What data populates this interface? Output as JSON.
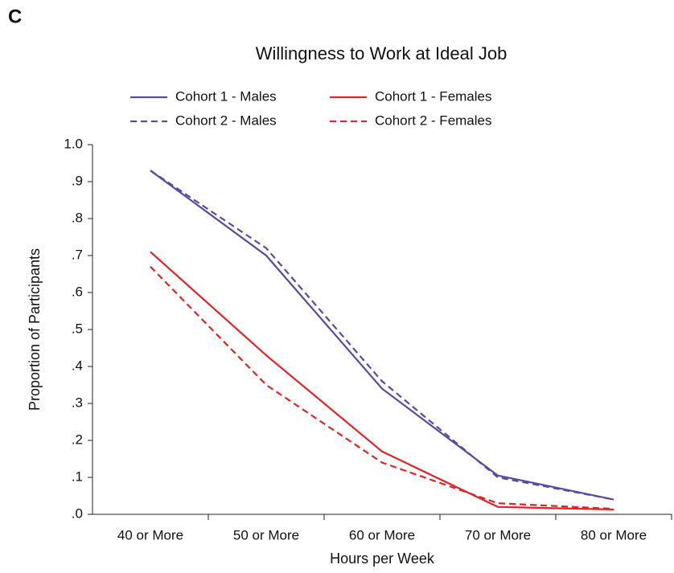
{
  "chart_data": {
    "type": "line",
    "panel_label": "C",
    "title": "Willingness to Work at Ideal Job",
    "xlabel": "Hours per Week",
    "ylabel": "Proportion of Participants",
    "categories": [
      "40 or More",
      "50 or More",
      "60 or More",
      "70 or More",
      "80 or More"
    ],
    "series": [
      {
        "name": "Cohort 1 - Males",
        "color": "#5b4a9e",
        "style": "solid",
        "values": [
          0.93,
          0.7,
          0.34,
          0.105,
          0.04
        ]
      },
      {
        "name": "Cohort 1 - Females",
        "color": "#e0252a",
        "style": "solid",
        "values": [
          0.71,
          0.43,
          0.17,
          0.02,
          0.013
        ]
      },
      {
        "name": "Cohort 2 - Males",
        "color": "#5b4a9e",
        "style": "dashed",
        "values": [
          0.93,
          0.72,
          0.36,
          0.1,
          0.04
        ]
      },
      {
        "name": "Cohort 2 - Females",
        "color": "#e0252a",
        "style": "dashed",
        "values": [
          0.67,
          0.35,
          0.14,
          0.03,
          0.015
        ]
      }
    ],
    "ylim": [
      0,
      1
    ],
    "yticks": [
      {
        "value": 0,
        "label": ".0"
      },
      {
        "value": 0.1,
        "label": ".1"
      },
      {
        "value": 0.2,
        "label": ".2"
      },
      {
        "value": 0.3,
        "label": ".3"
      },
      {
        "value": 0.4,
        "label": ".4"
      },
      {
        "value": 0.5,
        "label": ".5"
      },
      {
        "value": 0.6,
        "label": ".6"
      },
      {
        "value": 0.7,
        "label": ".7"
      },
      {
        "value": 0.8,
        "label": ".8"
      },
      {
        "value": 0.9,
        "label": ".9"
      },
      {
        "value": 1,
        "label": "1.0"
      }
    ],
    "grid": false
  }
}
